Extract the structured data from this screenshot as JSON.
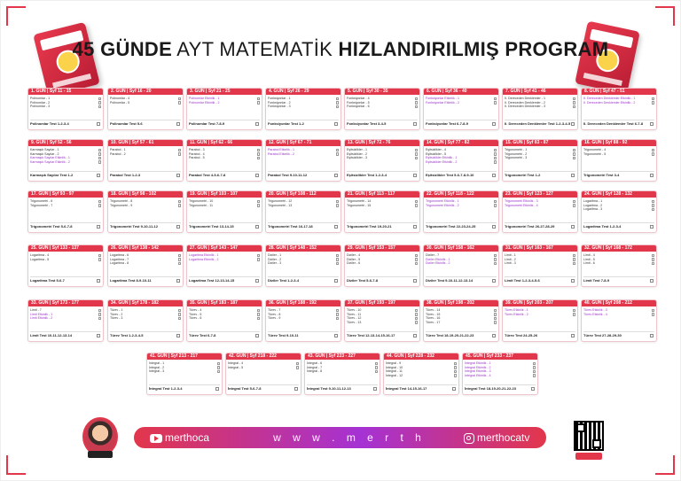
{
  "title": {
    "part1": "45 GÜNDE",
    "part2": "AYT MATEMATİK",
    "part3": "HIZLANDIRILMIŞ PROGRAM"
  },
  "footer": {
    "youtube": "merthoca",
    "website": "w w w . m e r t h o c a . c o m",
    "instagram": "merthocatv"
  },
  "colors": {
    "accent": "#e2364b",
    "purple": "#a532d4"
  },
  "days": [
    {
      "header": "1. GÜN | Syf 11 - 15",
      "topics": [
        "Polinomlar - 1",
        "Polinomlar - 2",
        "Polinomlar - 3"
      ],
      "purple": [],
      "test": "Polinomlar Test 1-2-3-4"
    },
    {
      "header": "2. GÜN | Syf 16 - 20",
      "topics": [
        "Polinomlar - 4",
        "Polinomlar - 5"
      ],
      "purple": [],
      "test": "Polinomlar Test 5-6"
    },
    {
      "header": "3. GÜN | Syf 21 - 25",
      "topics": [
        "Polinomlar Etkinlik - 1",
        "Polinomlar Etkinlik - 2"
      ],
      "purple": [
        0,
        1
      ],
      "test": "Polinomlar Test 7-8-9"
    },
    {
      "header": "4. GÜN | Syf 26 - 29",
      "topics": [
        "Fonksiyonlar - 1",
        "Fonksiyonlar - 2",
        "Fonksiyonlar - 3"
      ],
      "purple": [],
      "test": "Fonksiyonlar Test 1-2"
    },
    {
      "header": "5. GÜN | Syf 30 - 35",
      "topics": [
        "Fonksiyonlar - 4",
        "Fonksiyonlar - 5",
        "Fonksiyonlar - 6"
      ],
      "purple": [],
      "test": "Fonksiyonlar Test 3-4-5"
    },
    {
      "header": "6. GÜN | Syf 36 - 40",
      "topics": [
        "Fonksiyonlar Etkinlik - 1",
        "Fonksiyonlar Etkinlik - 2"
      ],
      "purple": [
        0,
        1
      ],
      "test": "Fonksiyonlar Test 6-7-8-9"
    },
    {
      "header": "7. GÜN | Syf 41 - 46",
      "topics": [
        "II. Dereceden Denklemler - 1",
        "II. Dereceden Denklemler - 2",
        "II. Dereceden Denklemler - 3"
      ],
      "purple": [],
      "test": "II. Dereceden Denklemler Test 1-2-3-4-5"
    },
    {
      "header": "8. GÜN | Syf 47 - 51",
      "topics": [
        "II. Dereceden Denklemler Etkinlik - 1",
        "II. Dereceden Denklemler Etkinlik - 2"
      ],
      "purple": [
        0,
        1
      ],
      "test": "II. Dereceden Denklemler Test 6-7-8"
    },
    {
      "header": "9. GÜN | Syf 52 - 56",
      "topics": [
        "Karmaşık Sayılar - 1",
        "Karmaşık Sayılar - 2",
        "Karmaşık Sayılar Etkinlik - 1",
        "Karmaşık Sayılar Etkinlik - 2"
      ],
      "purple": [
        2,
        3
      ],
      "test": "Karmaşık Sayılar Test 1-2"
    },
    {
      "header": "10. GÜN | Syf 57 - 61",
      "topics": [
        "Parabol - 1",
        "Parabol - 2"
      ],
      "purple": [],
      "test": "Parabol Test 1-2-3"
    },
    {
      "header": "11. GÜN | Syf 62 - 66",
      "topics": [
        "Parabol - 3",
        "Parabol - 4",
        "Parabol - 5"
      ],
      "purple": [],
      "test": "Parabol Test 4-5-6-7-8"
    },
    {
      "header": "12. GÜN | Syf 67 - 71",
      "topics": [
        "Parabol Etkinlik - 1",
        "Parabol Etkinlik - 2"
      ],
      "purple": [
        0,
        1
      ],
      "test": "Parabol Test 9-10-11-12"
    },
    {
      "header": "13. GÜN | Syf 72 - 76",
      "topics": [
        "Eşitsizlikler - 1",
        "Eşitsizlikler - 2",
        "Eşitsizlikler - 3"
      ],
      "purple": [],
      "test": "Eşitsizlikler Test 1-2-3-4"
    },
    {
      "header": "14. GÜN | Syf 77 - 82",
      "topics": [
        "Eşitsizlikler - 4",
        "Eşitsizlikler - 5",
        "Eşitsizlikler Etkinlik - 1",
        "Eşitsizlikler Etkinlik - 2"
      ],
      "purple": [
        2,
        3
      ],
      "test": "Eşitsizlikler Test 5-6-7-8-9-10"
    },
    {
      "header": "15. GÜN | Syf 83 - 87",
      "topics": [
        "Trigonometri - 1",
        "Trigonometri - 2",
        "Trigonometri - 3"
      ],
      "purple": [],
      "test": "Trigonometri Test 1-2"
    },
    {
      "header": "16. GÜN | Syf 88 - 92",
      "topics": [
        "Trigonometri - 4",
        "Trigonometri - 5"
      ],
      "purple": [],
      "test": "Trigonometri Test 3-4"
    },
    {
      "header": "17. GÜN | Syf 93 - 97",
      "topics": [
        "Trigonometri - 6",
        "Trigonometri - 7"
      ],
      "purple": [],
      "test": "Trigonometri Test 5-6-7-8"
    },
    {
      "header": "18. GÜN | Syf 98 - 102",
      "topics": [
        "Trigonometri - 8",
        "Trigonometri - 9"
      ],
      "purple": [],
      "test": "Trigonometri Test 9-10-11-12"
    },
    {
      "header": "19. GÜN | Syf 103 - 107",
      "topics": [
        "Trigonometri - 10",
        "Trigonometri - 11"
      ],
      "purple": [],
      "test": "Trigonometri Test 13-14-15"
    },
    {
      "header": "20. GÜN | Syf 108 - 112",
      "topics": [
        "Trigonometri - 12",
        "Trigonometri - 13"
      ],
      "purple": [],
      "test": "Trigonometri Test 16-17-18"
    },
    {
      "header": "21. GÜN | Syf 113 - 117",
      "topics": [
        "Trigonometri - 14",
        "Trigonometri - 15"
      ],
      "purple": [],
      "test": "Trigonometri Test 19-20-21"
    },
    {
      "header": "22. GÜN | Syf 118 - 122",
      "topics": [
        "Trigonometri Etkinlik - 1",
        "Trigonometri Etkinlik - 2"
      ],
      "purple": [
        0,
        1
      ],
      "test": "Trigonometri Test 22-23-24-25"
    },
    {
      "header": "23. GÜN | Syf 123 - 127",
      "topics": [
        "Trigonometri Etkinlik - 3",
        "Trigonometri Etkinlik - 4"
      ],
      "purple": [
        0,
        1
      ],
      "test": "Trigonometri Test 26-27-28-29"
    },
    {
      "header": "24. GÜN | Syf 128 - 132",
      "topics": [
        "Logaritma - 1",
        "Logaritma - 2",
        "Logaritma - 3"
      ],
      "purple": [],
      "test": "Logaritma Test 1-2-3-4"
    },
    {
      "header": "25. GÜN | Syf 133 - 137",
      "topics": [
        "Logaritma - 4",
        "Logaritma - 5"
      ],
      "purple": [],
      "test": "Logaritma Test 5-6-7"
    },
    {
      "header": "26. GÜN | Syf 138 - 142",
      "topics": [
        "Logaritma - 6",
        "Logaritma - 7",
        "Logaritma - 8"
      ],
      "purple": [],
      "test": "Logaritma Test 8-9-10-11"
    },
    {
      "header": "27. GÜN | Syf 143 - 147",
      "topics": [
        "Logaritma Etkinlik - 1",
        "Logaritma Etkinlik - 2"
      ],
      "purple": [
        0,
        1
      ],
      "test": "Logaritma Test 12-13-14-15"
    },
    {
      "header": "28. GÜN | Syf 148 - 152",
      "topics": [
        "Diziler - 1",
        "Diziler - 2",
        "Diziler - 3"
      ],
      "purple": [],
      "test": "Diziler Test 1-2-3-4"
    },
    {
      "header": "29. GÜN | Syf 153 - 157",
      "topics": [
        "Diziler - 4",
        "Diziler - 5",
        "Diziler - 6"
      ],
      "purple": [],
      "test": "Diziler Test 5-6-7-8"
    },
    {
      "header": "30. GÜN | Syf 158 - 162",
      "topics": [
        "Diziler - 7",
        "Diziler Etkinlik - 1",
        "Diziler Etkinlik - 2"
      ],
      "purple": [
        1,
        2
      ],
      "test": "Diziler Test 9-10-11-12-13-14"
    },
    {
      "header": "31. GÜN | Syf 163 - 167",
      "topics": [
        "Limit - 1",
        "Limit - 2",
        "Limit - 3"
      ],
      "purple": [],
      "test": "Limit Test 1-2-3-4-5-6"
    },
    {
      "header": "32. GÜN | Syf 168 - 172",
      "topics": [
        "Limit - 4",
        "Limit - 5",
        "Limit - 6"
      ],
      "purple": [],
      "test": "Limit Test 7-8-9"
    },
    {
      "header": "33. GÜN | Syf 173 - 177",
      "topics": [
        "Limit - 7",
        "Limit Etkinlik - 1",
        "Limit Etkinlik - 2"
      ],
      "purple": [
        1,
        2
      ],
      "test": "Limit Test 10-11-12-13-14"
    },
    {
      "header": "34. GÜN | Syf 178 - 182",
      "topics": [
        "Türev - 1",
        "Türev - 2",
        "Türev - 3"
      ],
      "purple": [],
      "test": "Türev Test 1-2-3-4-5"
    },
    {
      "header": "35. GÜN | Syf 183 - 187",
      "topics": [
        "Türev - 4",
        "Türev - 5",
        "Türev - 6"
      ],
      "purple": [],
      "test": "Türev Test 6-7-8"
    },
    {
      "header": "36. GÜN | Syf 188 - 192",
      "topics": [
        "Türev - 7",
        "Türev - 8",
        "Türev - 9"
      ],
      "purple": [],
      "test": "Türev Test 9-10-11"
    },
    {
      "header": "37. GÜN | Syf 193 - 197",
      "topics": [
        "Türev - 10",
        "Türev - 11",
        "Türev - 12",
        "Türev - 13"
      ],
      "purple": [],
      "test": "Türev Test 12-13-14-15-16-17"
    },
    {
      "header": "38. GÜN | Syf 198 - 202",
      "topics": [
        "Türev - 14",
        "Türev - 15",
        "Türev - 16",
        "Türev - 17"
      ],
      "purple": [],
      "test": "Türev Test 18-19-20-21-22-23"
    },
    {
      "header": "39. GÜN | Syf 203 - 207",
      "topics": [
        "Türev Etkinlik - 1",
        "Türev Etkinlik - 2"
      ],
      "purple": [
        0,
        1
      ],
      "test": "Türev Test 24-25-26"
    },
    {
      "header": "40. GÜN | Syf 208 - 212",
      "topics": [
        "Türev Etkinlik - 3",
        "Türev Etkinlik - 4"
      ],
      "purple": [
        0,
        1
      ],
      "test": "Türev Test 27-28-29-30"
    },
    {
      "header": "41. GÜN | Syf 213 - 217",
      "topics": [
        "İntegral - 1",
        "İntegral - 2",
        "İntegral - 3"
      ],
      "purple": [],
      "test": "İntegral Test 1-2-3-4"
    },
    {
      "header": "42. GÜN | Syf 218 - 222",
      "topics": [
        "İntegral - 4",
        "İntegral - 5"
      ],
      "purple": [],
      "test": "İntegral Test 5-6-7-8"
    },
    {
      "header": "43. GÜN | Syf 223 - 227",
      "topics": [
        "İntegral - 6",
        "İntegral - 7",
        "İntegral - 8"
      ],
      "purple": [],
      "test": "İntegral Test 9-10-11-12-13"
    },
    {
      "header": "44. GÜN | Syf 228 - 232",
      "topics": [
        "İntegral - 9",
        "İntegral - 10",
        "İntegral - 11",
        "İntegral - 12"
      ],
      "purple": [],
      "test": "İntegral Test 14-15-16-17"
    },
    {
      "header": "45. GÜN | Syf 233 - 237",
      "topics": [
        "İntegral Etkinlik - 1",
        "İntegral Etkinlik - 2",
        "İntegral Etkinlik - 3",
        "İntegral Etkinlik - 4"
      ],
      "purple": [
        0,
        1,
        2,
        3
      ],
      "test": "İntegral Test 18-19-20-21-22-23"
    }
  ]
}
